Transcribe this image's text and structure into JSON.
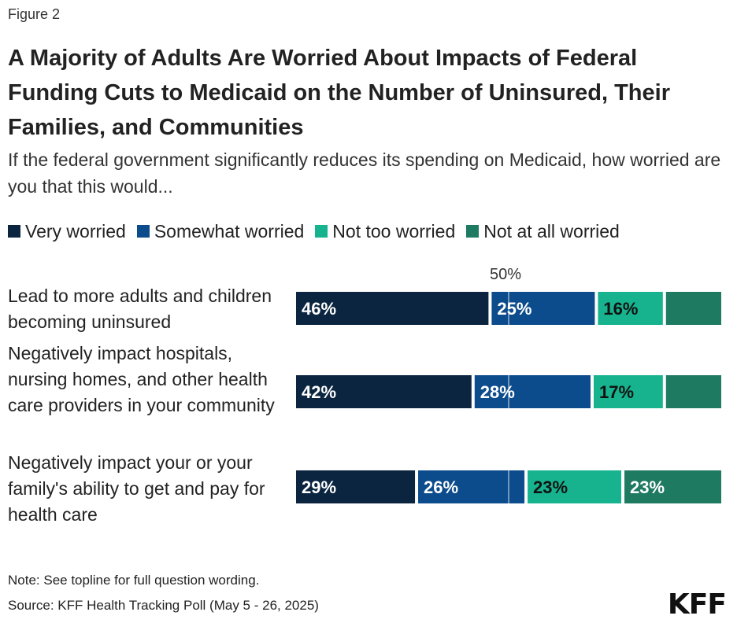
{
  "figure_label": "Figure 2",
  "title": "A Majority of Adults Are Worried About Impacts of Federal Funding Cuts to Medicaid on the Number of Uninsured, Their Families, and Communities",
  "subtitle": "If the federal government significantly reduces its spending on Medicaid, how worried are you that this would...",
  "note": "Note: See topline for full question wording.",
  "source": "Source: KFF Health Tracking Poll (May 5 - 26, 2025)",
  "logo_text": "KFF",
  "chart_data": {
    "type": "bar",
    "orientation": "horizontal",
    "stacked": true,
    "categories": [
      "Lead to more adults and children becoming uninsured",
      "Negatively impact hospitals, nursing homes, and other health care providers in your community",
      "Negatively impact your or your family's ability to get and pay for health care"
    ],
    "series": [
      {
        "name": "Very worried",
        "color": "#0b2540",
        "values": [
          46,
          42,
          29
        ],
        "labels": [
          "46%",
          "42%",
          "29%"
        ],
        "label_color": "#ffffff"
      },
      {
        "name": "Somewhat worried",
        "color": "#0d4c8c",
        "values": [
          25,
          28,
          26
        ],
        "labels": [
          "25%",
          "28%",
          "26%"
        ],
        "label_color": "#ffffff"
      },
      {
        "name": "Not too worried",
        "color": "#16b38e",
        "values": [
          16,
          17,
          23
        ],
        "labels": [
          "16%",
          "17%",
          "23%"
        ],
        "label_color": "#111111"
      },
      {
        "name": "Not at all worried",
        "color": "#1f7a62",
        "values": [
          13,
          13,
          23
        ],
        "labels": [
          "",
          "",
          "23%"
        ],
        "label_color": "#ffffff"
      }
    ],
    "reference_line": {
      "value": 50,
      "label": "50%"
    },
    "xlim": [
      0,
      100
    ],
    "legend_position": "top"
  }
}
